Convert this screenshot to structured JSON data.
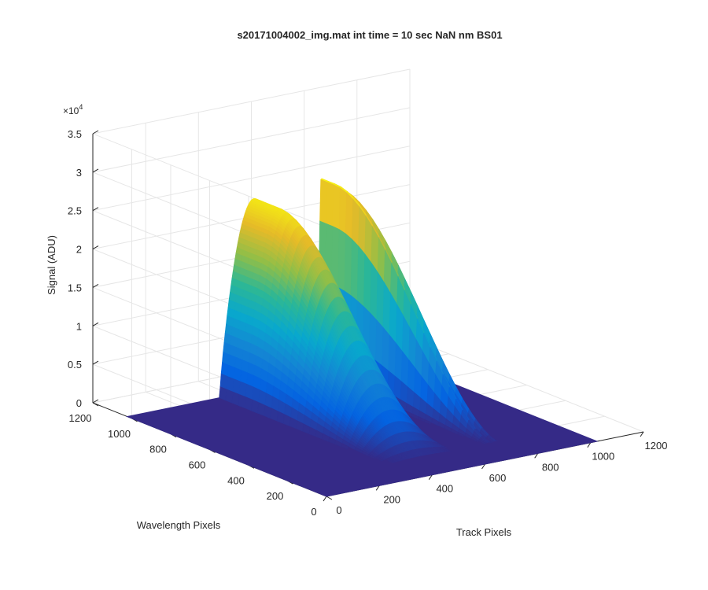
{
  "chart_data": {
    "type": "surface",
    "title": "s20171004002_img.mat int time = 10 sec   NaN nm BS01",
    "xlabel": "Track Pixels",
    "ylabel": "Wavelength Pixels",
    "zlabel": "Signal (ADU)",
    "z_exponent": "×10",
    "z_exponent_power": "4",
    "xlim": [
      0,
      1200
    ],
    "ylim": [
      0,
      1200
    ],
    "zlim": [
      0,
      35000
    ],
    "x_ticks": [
      "0",
      "200",
      "400",
      "600",
      "800",
      "1000",
      "1200"
    ],
    "y_ticks": [
      "0",
      "200",
      "400",
      "600",
      "800",
      "1000",
      "1200"
    ],
    "z_ticks": [
      "0",
      "0.5",
      "1",
      "1.5",
      "2",
      "2.5",
      "3",
      "3.5"
    ],
    "grid": true,
    "colormap": "parula",
    "data_extent": {
      "x": [
        0,
        1024
      ],
      "y": [
        0,
        1024
      ]
    },
    "features": [
      {
        "feature": "broad hump",
        "track_range": [
          350,
          610
        ],
        "peak_track": 470,
        "peak_signal": 25000,
        "wavelength_range": [
          120,
          1024
        ],
        "peak_wavelength": 900
      },
      {
        "feature": "narrow double peak",
        "track_range": [
          700,
          790
        ],
        "peak_track": [
          735,
          760
        ],
        "peak_signal": 26500,
        "wavelength_range": [
          120,
          1024
        ],
        "peak_wavelength": 950
      }
    ],
    "baseline_signal": 0
  },
  "colors": {
    "background": "#ffffff",
    "axis": "#262626",
    "grid": "#e6e6e6",
    "surface_low": "#352a87",
    "surface_high": "#f9fb0e"
  }
}
